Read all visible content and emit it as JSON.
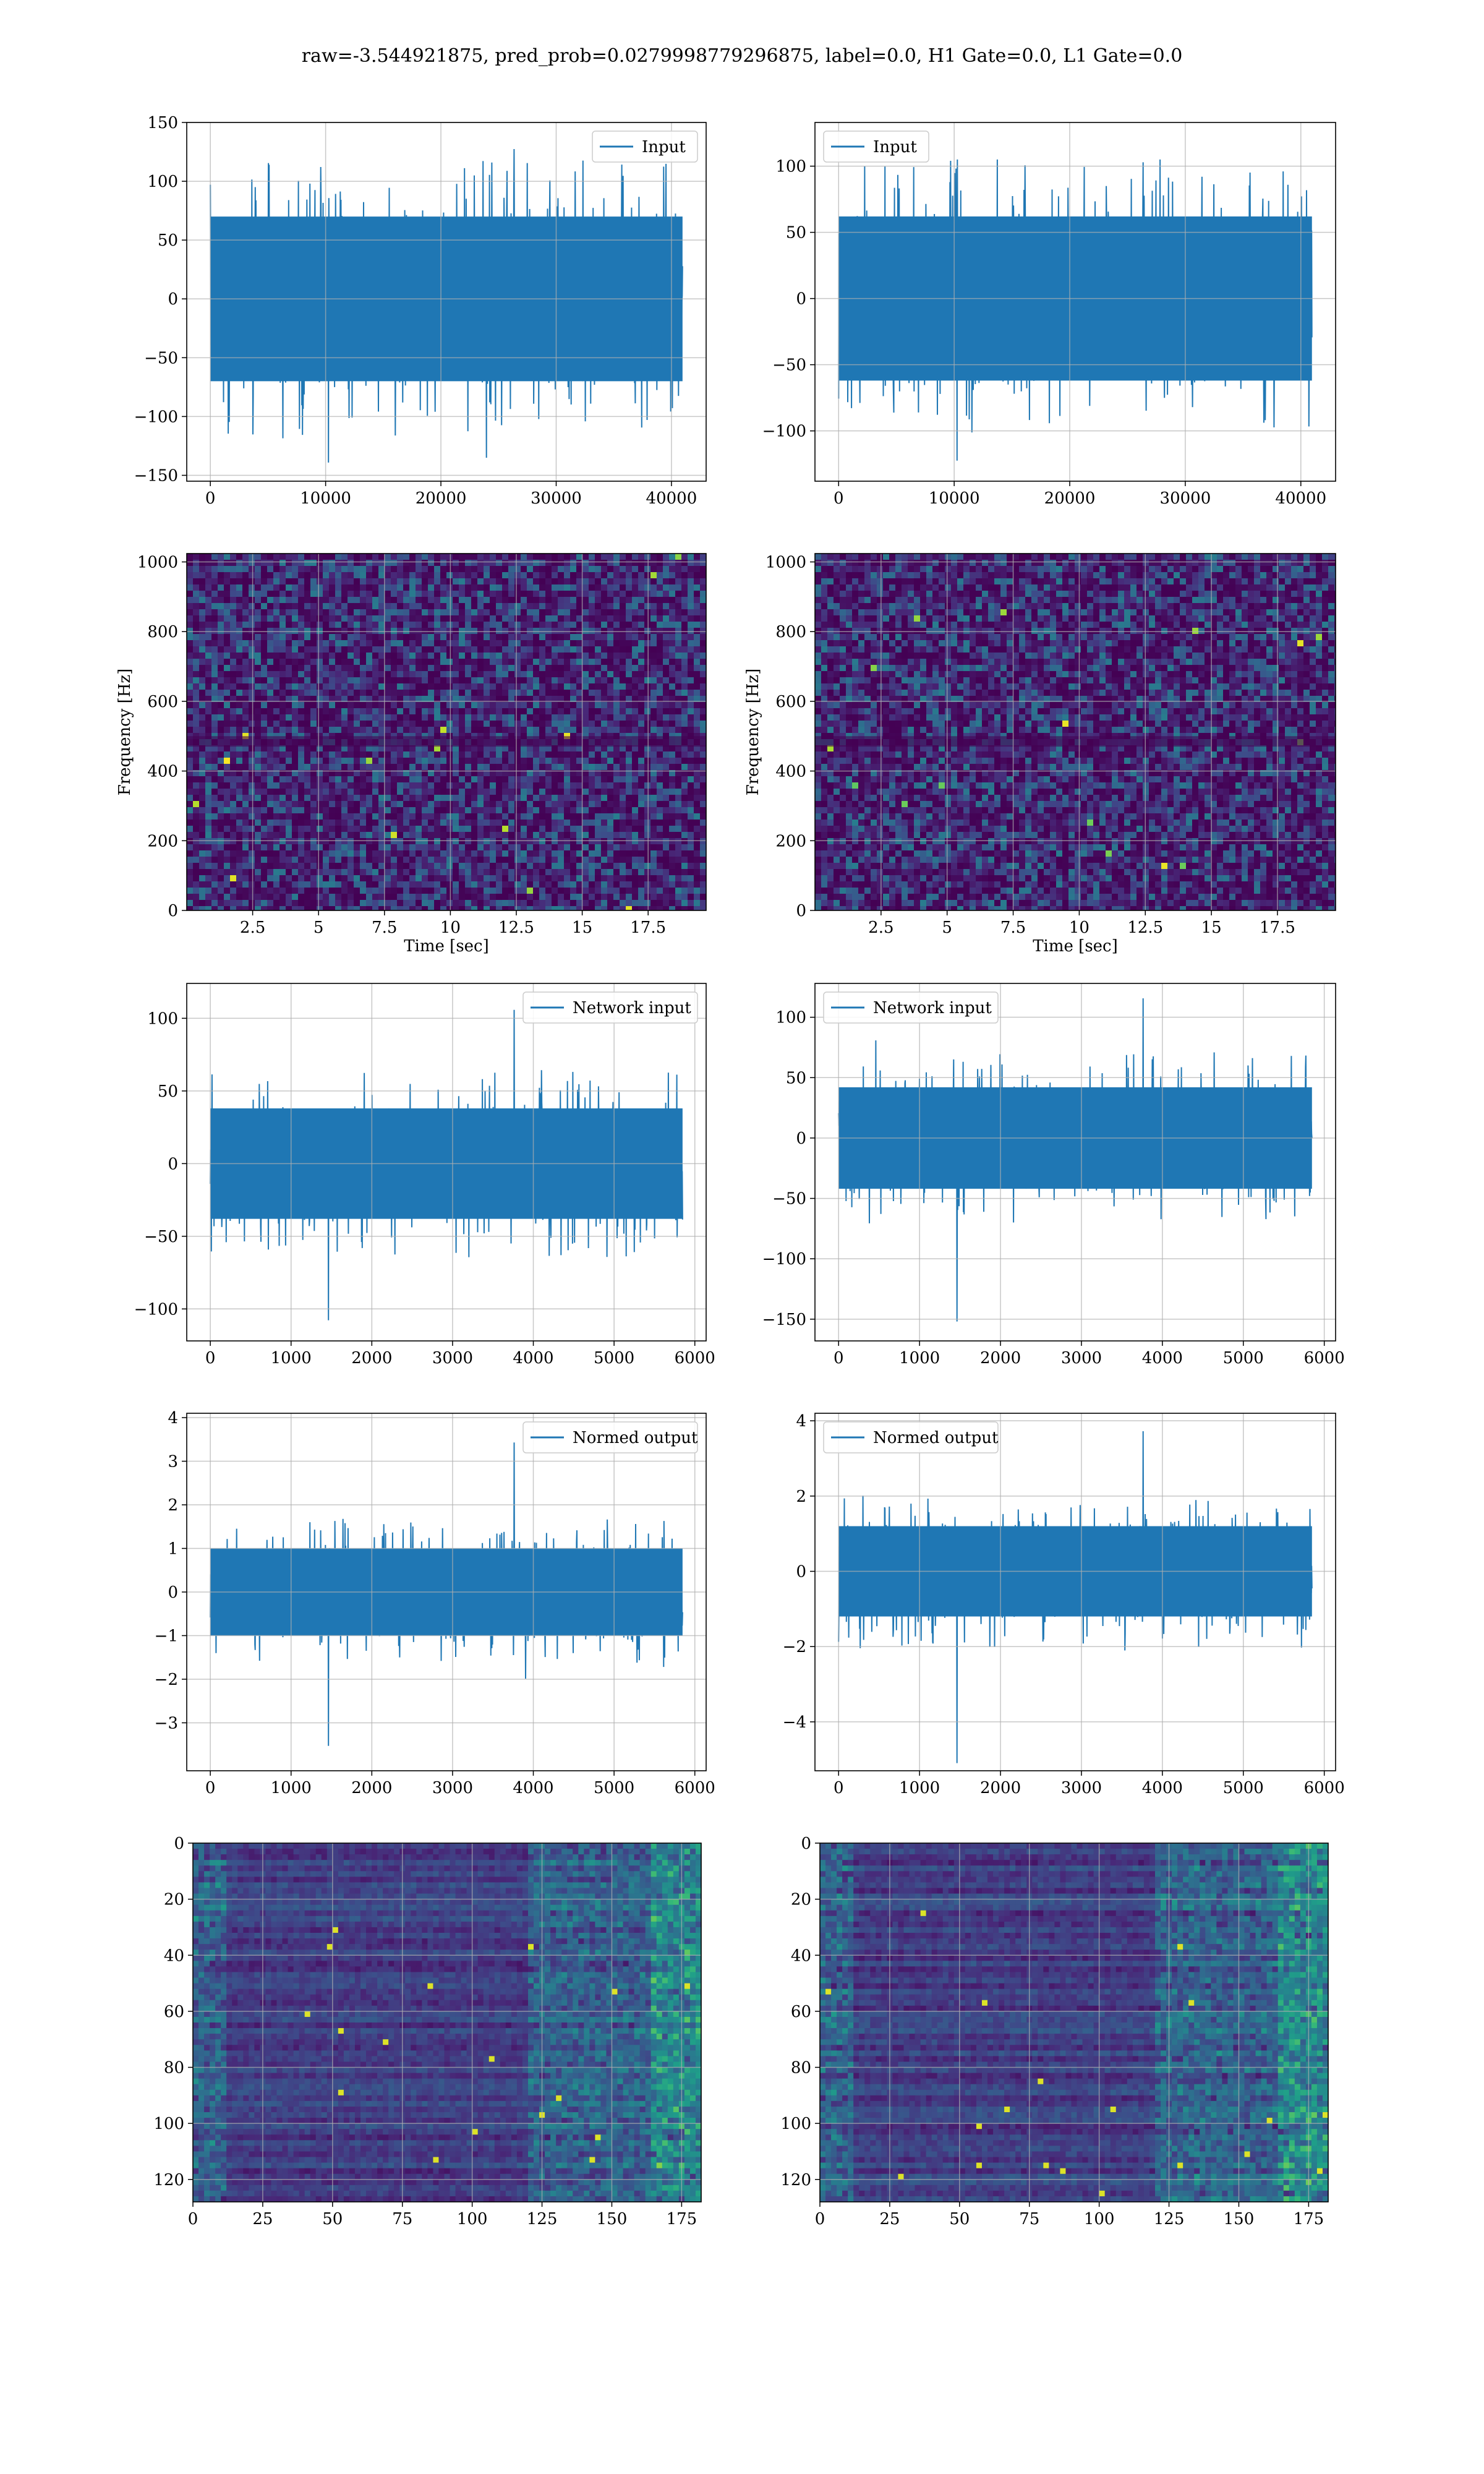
{
  "figure": {
    "suptitle": "raw=-3.544921875, pred_prob=0.0279998779296875, label=0.0, H1 Gate=0.0, L1 Gate=0.0",
    "colors": {
      "series": "#1f77b4",
      "grid": "#b0b0b0",
      "viridis_dark": "#440154",
      "viridis_mid": "#21918c",
      "viridis_bright": "#fde725"
    }
  },
  "chart_data": [
    {
      "id": "input-h1",
      "type": "line",
      "legend": "Input",
      "x_range": [
        0,
        40960
      ],
      "xlim": [
        -2048,
        43008
      ],
      "ylim": [
        -155,
        150
      ],
      "xticks": [
        0,
        10000,
        20000,
        30000,
        40000
      ],
      "yticks": [
        -150,
        -100,
        -50,
        0,
        50,
        100,
        150
      ],
      "envelope": {
        "typical": 70,
        "peak_max": 130,
        "peak_min": -142
      },
      "grid": true,
      "legend_position": "upper right"
    },
    {
      "id": "input-l1",
      "type": "line",
      "legend": "Input",
      "x_range": [
        0,
        40960
      ],
      "xlim": [
        -2048,
        43008
      ],
      "ylim": [
        -138,
        133
      ],
      "xticks": [
        0,
        10000,
        20000,
        30000,
        40000
      ],
      "yticks": [
        -100,
        -50,
        0,
        50,
        100
      ],
      "envelope": {
        "typical": 62,
        "peak_max": 105,
        "peak_min": -125
      },
      "grid": true,
      "legend_position": "upper left"
    },
    {
      "id": "spectrogram-h1",
      "type": "heatmap",
      "colormap": "viridis",
      "xlabel": "Time [sec]",
      "ylabel": "Frequency [Hz]",
      "xlim": [
        0,
        19.7
      ],
      "ylim": [
        0,
        1024
      ],
      "xticks": [
        2.5,
        5.0,
        7.5,
        10.0,
        12.5,
        15.0,
        17.5
      ],
      "yticks": [
        0,
        200,
        400,
        600,
        800,
        1000
      ],
      "grid": true
    },
    {
      "id": "spectrogram-l1",
      "type": "heatmap",
      "colormap": "viridis",
      "xlabel": "Time [sec]",
      "ylabel": "Frequency [Hz]",
      "xlim": [
        0,
        19.7
      ],
      "ylim": [
        0,
        1024
      ],
      "xticks": [
        2.5,
        5.0,
        7.5,
        10.0,
        12.5,
        15.0,
        17.5
      ],
      "yticks": [
        0,
        200,
        400,
        600,
        800,
        1000
      ],
      "grid": true
    },
    {
      "id": "network-input-h1",
      "type": "line",
      "legend": "Network input",
      "x_range": [
        0,
        5848
      ],
      "xlim": [
        -292,
        6140
      ],
      "ylim": [
        -122,
        124
      ],
      "xticks": [
        0,
        1000,
        2000,
        3000,
        4000,
        5000,
        6000
      ],
      "yticks": [
        -100,
        -50,
        0,
        50,
        100
      ],
      "envelope": {
        "typical": 38,
        "peak_max": 108,
        "peak_min": -110
      },
      "grid": true,
      "legend_position": "upper right"
    },
    {
      "id": "network-input-l1",
      "type": "line",
      "legend": "Network input",
      "x_range": [
        0,
        5848
      ],
      "xlim": [
        -292,
        6140
      ],
      "ylim": [
        -168,
        128
      ],
      "xticks": [
        0,
        1000,
        2000,
        3000,
        4000,
        5000,
        6000
      ],
      "yticks": [
        -150,
        -100,
        -50,
        0,
        50,
        100
      ],
      "envelope": {
        "typical": 42,
        "peak_max": 118,
        "peak_min": -155
      },
      "grid": true,
      "legend_position": "upper left"
    },
    {
      "id": "normed-output-h1",
      "type": "line",
      "legend": "Normed output",
      "x_range": [
        0,
        5848
      ],
      "xlim": [
        -292,
        6140
      ],
      "ylim": [
        -4.1,
        4.1
      ],
      "xticks": [
        0,
        1000,
        2000,
        3000,
        4000,
        5000,
        6000
      ],
      "yticks": [
        -3,
        -2,
        -1,
        0,
        1,
        2,
        3,
        4
      ],
      "envelope": {
        "typical": 1.0,
        "peak_max": 3.5,
        "peak_min": -3.6
      },
      "grid": true,
      "legend_position": "upper right"
    },
    {
      "id": "normed-output-l1",
      "type": "line",
      "legend": "Normed output",
      "x_range": [
        0,
        5848
      ],
      "xlim": [
        -292,
        6140
      ],
      "ylim": [
        -5.3,
        4.2
      ],
      "xticks": [
        0,
        1000,
        2000,
        3000,
        4000,
        5000,
        6000
      ],
      "yticks": [
        -4,
        -2,
        0,
        2,
        4
      ],
      "envelope": {
        "typical": 1.2,
        "peak_max": 3.8,
        "peak_min": -5.2
      },
      "grid": true,
      "legend_position": "upper left"
    },
    {
      "id": "embedding-h1",
      "type": "heatmap",
      "colormap": "viridis",
      "xlim": [
        0,
        182
      ],
      "ylim": [
        128,
        0
      ],
      "xticks": [
        0,
        25,
        50,
        75,
        100,
        125,
        150,
        175
      ],
      "yticks": [
        0,
        20,
        40,
        60,
        80,
        100,
        120
      ],
      "grid": true
    },
    {
      "id": "embedding-l1",
      "type": "heatmap",
      "colormap": "viridis",
      "xlim": [
        0,
        182
      ],
      "ylim": [
        128,
        0
      ],
      "xticks": [
        0,
        25,
        50,
        75,
        100,
        125,
        150,
        175
      ],
      "yticks": [
        0,
        20,
        40,
        60,
        80,
        100,
        120
      ],
      "grid": true
    }
  ]
}
